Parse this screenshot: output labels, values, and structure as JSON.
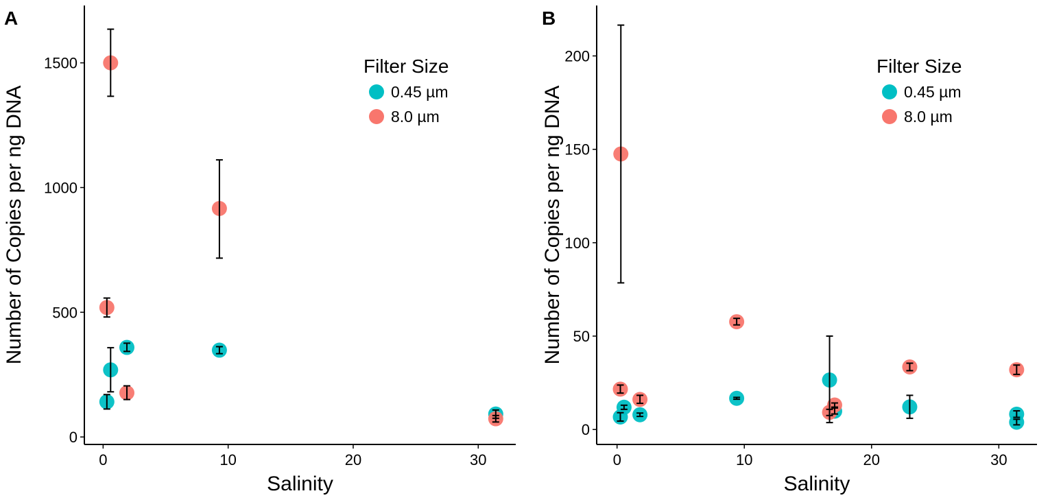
{
  "colors": {
    "teal": "#00BFC4",
    "red": "#F8766D"
  },
  "chart_data": [
    {
      "panel": "A",
      "type": "scatter",
      "xlabel": "Salinity",
      "ylabel": "Number of Copies per ng DNA",
      "xlim": [
        -1.5,
        33
      ],
      "ylim": [
        -30,
        1730
      ],
      "xticks": [
        0,
        10,
        20,
        30
      ],
      "yticks": [
        0,
        500,
        1000,
        1500
      ],
      "legend": {
        "title": "Filter Size",
        "position": "top-right",
        "entries": [
          "0.45 µm",
          "8.0 µm"
        ]
      },
      "series": [
        {
          "name": "0.45 µm",
          "color": "teal",
          "points": [
            {
              "x": 0.3,
              "y": 141,
              "lo": 112,
              "hi": 170
            },
            {
              "x": 0.6,
              "y": 269,
              "lo": 181,
              "hi": 358
            },
            {
              "x": 1.9,
              "y": 359,
              "lo": 343,
              "hi": 376
            },
            {
              "x": 9.3,
              "y": 348,
              "lo": 334,
              "hi": 362
            },
            {
              "x": 31.4,
              "y": 92,
              "lo": 75,
              "hi": 108
            }
          ]
        },
        {
          "name": "8.0 µm",
          "color": "red",
          "points": [
            {
              "x": 0.6,
              "y": 1500,
              "lo": 1366,
              "hi": 1635
            },
            {
              "x": 0.3,
              "y": 519,
              "lo": 481,
              "hi": 557
            },
            {
              "x": 1.9,
              "y": 177,
              "lo": 150,
              "hi": 205
            },
            {
              "x": 9.3,
              "y": 916,
              "lo": 717,
              "hi": 1111
            },
            {
              "x": 31.4,
              "y": 73,
              "lo": 60,
              "hi": 86
            }
          ]
        }
      ]
    },
    {
      "panel": "B",
      "type": "scatter",
      "xlabel": "Salinity",
      "ylabel": "Number of Copies per ng DNA",
      "xlim": [
        -1.6,
        33
      ],
      "ylim": [
        -8,
        227
      ],
      "xticks": [
        0,
        10,
        20,
        30
      ],
      "yticks": [
        0,
        50,
        100,
        150,
        200
      ],
      "legend": {
        "title": "Filter Size",
        "position": "top-right",
        "entries": [
          "0.45 µm",
          "8.0 µm"
        ]
      },
      "series": [
        {
          "name": "0.45 µm",
          "color": "teal",
          "points": [
            {
              "x": 0.26,
              "y": 6.7,
              "lo": 4.5,
              "hi": 9
            },
            {
              "x": 0.55,
              "y": 11.9,
              "lo": 10.8,
              "hi": 13
            },
            {
              "x": 1.8,
              "y": 7.9,
              "lo": 7,
              "hi": 8.8
            },
            {
              "x": 9.4,
              "y": 16.7,
              "lo": 16.2,
              "hi": 17.2
            },
            {
              "x": 16.7,
              "y": 26.5,
              "lo": 3.7,
              "hi": 50
            },
            {
              "x": 17.1,
              "y": 9.8,
              "lo": 8.3,
              "hi": 11.5
            },
            {
              "x": 23,
              "y": 12.1,
              "lo": 6,
              "hi": 18.3
            },
            {
              "x": 31.4,
              "y": 8.2,
              "lo": 6.5,
              "hi": 10
            },
            {
              "x": 31.4,
              "y": 3.9,
              "lo": 2.5,
              "hi": 5.5
            }
          ]
        },
        {
          "name": "8.0 µm",
          "color": "red",
          "points": [
            {
              "x": 0.3,
              "y": 147.5,
              "lo": 78.5,
              "hi": 216.5
            },
            {
              "x": 0.26,
              "y": 21.6,
              "lo": 19.5,
              "hi": 23.8
            },
            {
              "x": 1.8,
              "y": 16.1,
              "lo": 14,
              "hi": 18.3
            },
            {
              "x": 9.4,
              "y": 57.7,
              "lo": 56,
              "hi": 59.5
            },
            {
              "x": 16.7,
              "y": 9.2,
              "lo": 7.5,
              "hi": 10.8
            },
            {
              "x": 17.1,
              "y": 13.1,
              "lo": 12,
              "hi": 14.2
            },
            {
              "x": 23,
              "y": 33.5,
              "lo": 31.5,
              "hi": 35.5
            },
            {
              "x": 31.4,
              "y": 32,
              "lo": 29.5,
              "hi": 34.5
            }
          ]
        }
      ]
    }
  ]
}
